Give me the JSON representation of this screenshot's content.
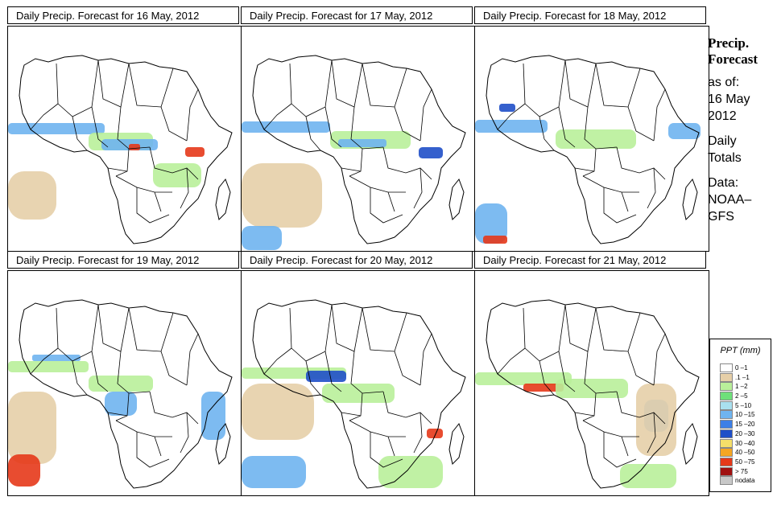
{
  "panels": [
    {
      "title": "Daily Precip. Forecast for  16 May, 2012"
    },
    {
      "title": "Daily Precip. Forecast for  17 May, 2012"
    },
    {
      "title": "Daily Precip. Forecast for  18 May, 2012"
    },
    {
      "title": "Daily Precip. Forecast for  19 May, 2012"
    },
    {
      "title": "Daily Precip. Forecast for  20 May, 2012"
    },
    {
      "title": "Daily Precip. Forecast for  21 May, 2012"
    }
  ],
  "sidebar": {
    "heading_line1": "Precip.",
    "heading_line2": "Forecast",
    "asof_label": "as of:",
    "date_line1": "16 May",
    "date_line2": "2012",
    "daily_line1": "Daily",
    "daily_line2": "Totals",
    "data_label": "Data:",
    "source_line1": "NOAA–",
    "source_line2": "GFS"
  },
  "legend": {
    "title": "PPT (mm)",
    "items": [
      {
        "label": "0 –1",
        "color": "#ffffff"
      },
      {
        "label": ".1 –1",
        "color": "#e6cfa8"
      },
      {
        "label": "1 –2",
        "color": "#b9ef9a"
      },
      {
        "label": "2 –5",
        "color": "#6ee07a"
      },
      {
        "label": "5 –10",
        "color": "#a9e0ef"
      },
      {
        "label": "10 –15",
        "color": "#6fb4ef"
      },
      {
        "label": "15 –20",
        "color": "#3d7fe6"
      },
      {
        "label": "20 –30",
        "color": "#1f4fc8"
      },
      {
        "label": "30 –40",
        "color": "#f5df6a"
      },
      {
        "label": "40 –50",
        "color": "#f5a623"
      },
      {
        "label": "50 –75",
        "color": "#e5391a"
      },
      {
        "label": "> 75",
        "color": "#a01010"
      },
      {
        "label": "nodata",
        "color": "#c8c8c8"
      }
    ]
  },
  "colors": {
    "land_outline": "#000000",
    "dry": "#e6cfa8",
    "light": "#b9ef9a",
    "moderate": "#6ee07a",
    "wet": "#6fb4ef",
    "heavy": "#1f4fc8",
    "extreme": "#e5391a"
  }
}
